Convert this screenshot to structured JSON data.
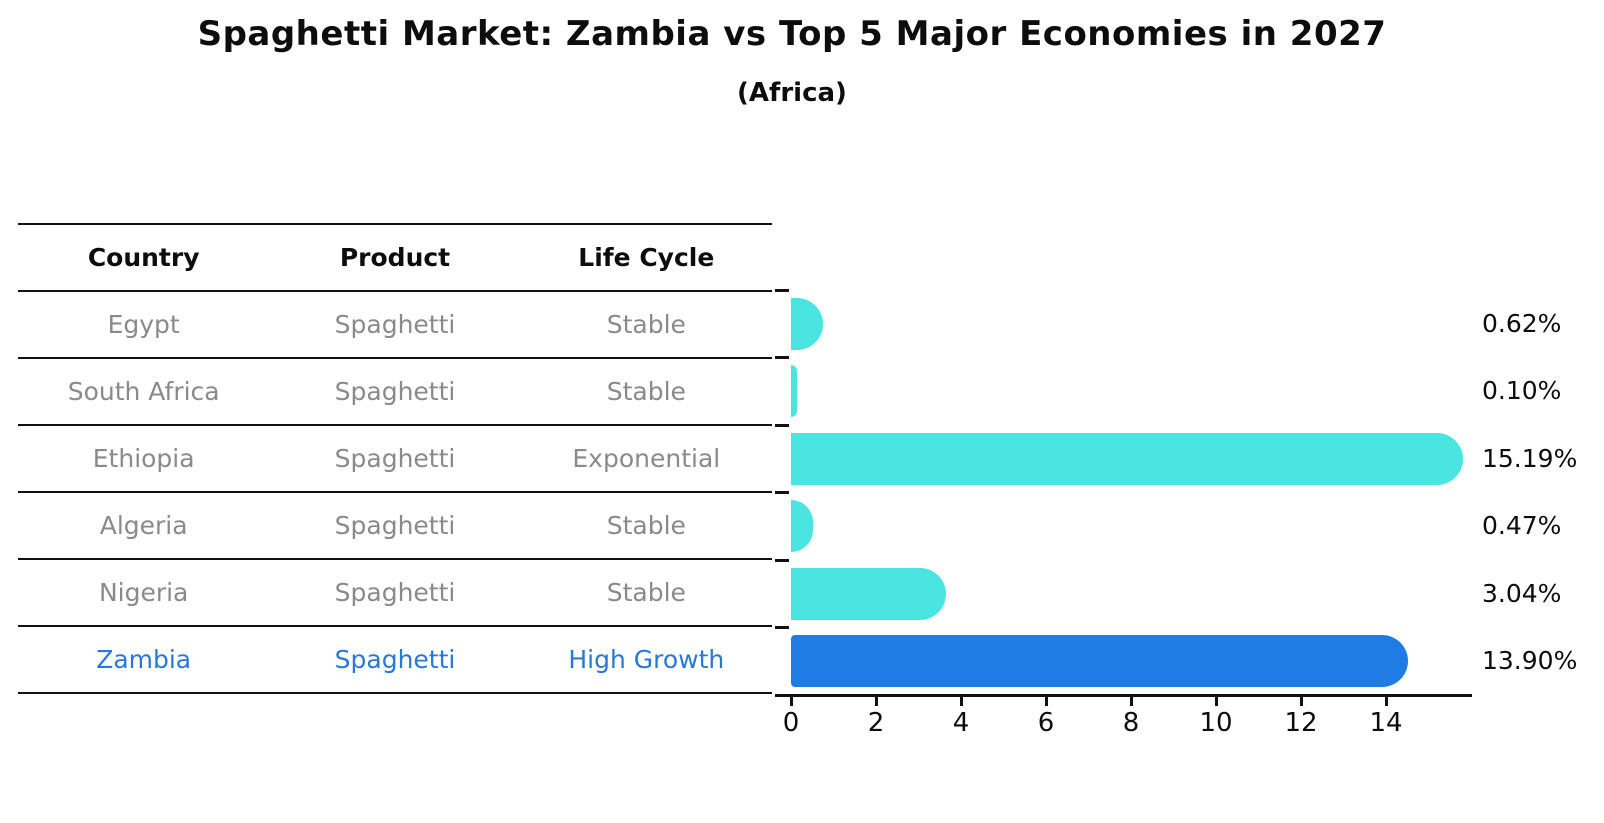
{
  "title": "Spaghetti Market: Zambia vs Top 5 Major Economies in 2027",
  "subtitle": "(Africa)",
  "table": {
    "headers": [
      "Country",
      "Product",
      "Life Cycle"
    ],
    "rows": [
      {
        "country": "Egypt",
        "product": "Spaghetti",
        "life_cycle": "Stable",
        "highlight": false
      },
      {
        "country": "South Africa",
        "product": "Spaghetti",
        "life_cycle": "Stable",
        "highlight": false
      },
      {
        "country": "Ethiopia",
        "product": "Spaghetti",
        "life_cycle": "Exponential",
        "highlight": false
      },
      {
        "country": "Algeria",
        "product": "Spaghetti",
        "life_cycle": "Stable",
        "highlight": false
      },
      {
        "country": "Nigeria",
        "product": "Spaghetti",
        "life_cycle": "Stable",
        "highlight": false
      },
      {
        "country": "Zambia",
        "product": "Spaghetti",
        "life_cycle": "High Growth",
        "highlight": true
      }
    ]
  },
  "chart_data": {
    "type": "bar",
    "orientation": "horizontal",
    "title": "Spaghetti Market: Zambia vs Top 5 Major Economies in 2027",
    "subtitle": "(Africa)",
    "categories": [
      "Egypt",
      "South Africa",
      "Ethiopia",
      "Algeria",
      "Nigeria",
      "Zambia"
    ],
    "values": [
      0.62,
      0.1,
      15.19,
      0.47,
      3.04,
      13.9
    ],
    "value_labels": [
      "0.62%",
      "0.10%",
      "15.19%",
      "0.47%",
      "3.04%",
      "13.90%"
    ],
    "xlabel": "",
    "ylabel": "",
    "xlim": [
      0,
      16
    ],
    "x_ticks": [
      0,
      2,
      4,
      6,
      8,
      10,
      12,
      14
    ],
    "grid": false,
    "legend": false,
    "bar_color": "#4AE5E0",
    "highlight_bar_color": "#1E7CE4",
    "highlight_index": 5,
    "highlight_style": "dotted-border"
  },
  "colors": {
    "bar_cyan": "#4AE5E0",
    "bar_blue": "#1E7CE4",
    "highlight_text": "#2878d8",
    "table_text": "#8a8a8a",
    "axis": "#111111"
  }
}
